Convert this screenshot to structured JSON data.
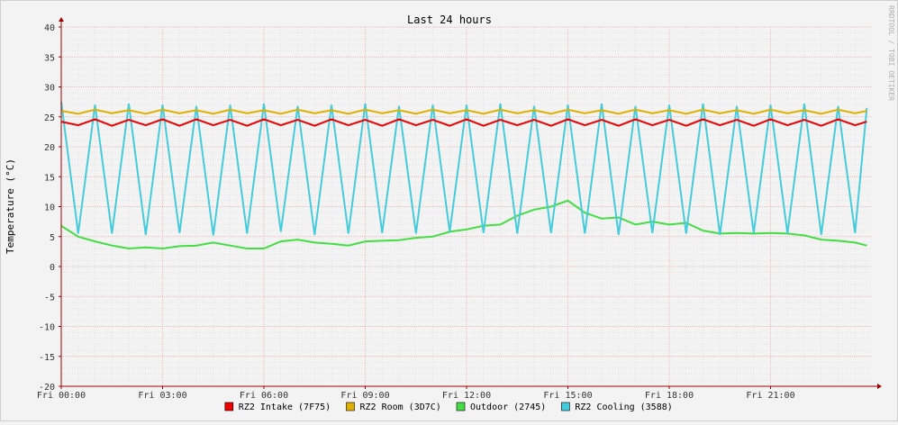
{
  "chart_data": {
    "type": "line",
    "title": "Last 24 hours",
    "ylabel": "Temperature (°C)",
    "watermark": "RRDTOOL / TOBI OETIKER",
    "ylim": [
      -20,
      40
    ],
    "yticks": [
      40,
      35,
      30,
      25,
      20,
      15,
      10,
      5,
      0,
      -5,
      -10,
      -15,
      -20
    ],
    "x_start_hour": 0,
    "x_end_hour": 24,
    "x_ticks": [
      {
        "hour": 0,
        "label": "Fri 00:00"
      },
      {
        "hour": 3,
        "label": "Fri 03:00"
      },
      {
        "hour": 6,
        "label": "Fri 06:00"
      },
      {
        "hour": 9,
        "label": "Fri 09:00"
      },
      {
        "hour": 12,
        "label": "Fri 12:00"
      },
      {
        "hour": 15,
        "label": "Fri 15:00"
      },
      {
        "hour": 18,
        "label": "Fri 18:00"
      },
      {
        "hour": 21,
        "label": "Fri 21:00"
      }
    ],
    "grid": true,
    "legend_position": "bottom",
    "colors": {
      "intake": "#ee0000",
      "room": "#e0b000",
      "outdoor": "#44dd44",
      "cooling": "#44ccdd",
      "grid_major": "#e8a8a8",
      "grid_minor": "#d8d8d8",
      "axis": "#a00000"
    },
    "series": [
      {
        "name": "RZ2 Intake (7F75)",
        "color": "#ee0000",
        "x_hours": [
          0,
          0.5,
          1,
          1.5,
          2,
          2.5,
          3,
          3.5,
          4,
          4.5,
          5,
          5.5,
          6,
          6.5,
          7,
          7.5,
          8,
          8.5,
          9,
          9.5,
          10,
          10.5,
          11,
          11.5,
          12,
          12.5,
          13,
          13.5,
          14,
          14.5,
          15,
          15.5,
          16,
          16.5,
          17,
          17.5,
          18,
          18.5,
          19,
          19.5,
          20,
          20.5,
          21,
          21.5,
          22,
          22.5,
          23,
          23.5,
          23.85
        ],
        "values": [
          24.2,
          23.6,
          24.6,
          23.5,
          24.5,
          23.6,
          24.6,
          23.5,
          24.6,
          23.6,
          24.5,
          23.5,
          24.6,
          23.6,
          24.5,
          23.5,
          24.6,
          23.6,
          24.5,
          23.5,
          24.6,
          23.6,
          24.5,
          23.5,
          24.6,
          23.5,
          24.5,
          23.6,
          24.5,
          23.5,
          24.6,
          23.6,
          24.5,
          23.5,
          24.6,
          23.6,
          24.5,
          23.5,
          24.6,
          23.6,
          24.5,
          23.5,
          24.6,
          23.6,
          24.5,
          23.5,
          24.6,
          23.6,
          24.2
        ]
      },
      {
        "name": "RZ2 Room (3D7C)",
        "color": "#e0b000",
        "x_hours": [
          0,
          0.5,
          1,
          1.5,
          2,
          2.5,
          3,
          3.5,
          4,
          4.5,
          5,
          5.5,
          6,
          6.5,
          7,
          7.5,
          8,
          8.5,
          9,
          9.5,
          10,
          10.5,
          11,
          11.5,
          12,
          12.5,
          13,
          13.5,
          14,
          14.5,
          15,
          15.5,
          16,
          16.5,
          17,
          17.5,
          18,
          18.5,
          19,
          19.5,
          20,
          20.5,
          21,
          21.5,
          22,
          22.5,
          23,
          23.5,
          23.85
        ],
        "values": [
          26.0,
          25.5,
          26.2,
          25.6,
          26.1,
          25.5,
          26.2,
          25.6,
          26.1,
          25.5,
          26.2,
          25.6,
          26.1,
          25.5,
          26.2,
          25.6,
          26.1,
          25.5,
          26.2,
          25.6,
          26.1,
          25.5,
          26.2,
          25.6,
          26.1,
          25.5,
          26.2,
          25.6,
          26.1,
          25.5,
          26.2,
          25.6,
          26.1,
          25.5,
          26.2,
          25.6,
          26.1,
          25.5,
          26.2,
          25.6,
          26.1,
          25.5,
          26.2,
          25.6,
          26.1,
          25.5,
          26.2,
          25.6,
          26.0
        ]
      },
      {
        "name": "Outdoor (2745)",
        "color": "#44dd44",
        "x_hours": [
          0,
          0.5,
          1,
          1.5,
          2,
          2.5,
          3,
          3.5,
          4,
          4.5,
          5,
          5.5,
          6,
          6.5,
          7,
          7.5,
          8,
          8.5,
          9,
          9.5,
          10,
          10.5,
          11,
          11.5,
          12,
          12.5,
          13,
          13.5,
          14,
          14.5,
          15,
          15.5,
          16,
          16.5,
          17,
          17.5,
          18,
          18.5,
          19,
          19.5,
          20,
          20.5,
          21,
          21.5,
          22,
          22.5,
          23,
          23.5,
          23.85
        ],
        "values": [
          6.8,
          5.0,
          4.2,
          3.5,
          3.0,
          3.2,
          3.0,
          3.4,
          3.5,
          4.0,
          3.5,
          3.0,
          3.0,
          4.2,
          4.5,
          4.0,
          3.8,
          3.5,
          4.2,
          4.3,
          4.4,
          4.8,
          5.0,
          5.8,
          6.2,
          6.8,
          7.0,
          8.5,
          9.5,
          10.0,
          11.0,
          9.0,
          8.0,
          8.2,
          7.0,
          7.5,
          7.0,
          7.3,
          6.0,
          5.5,
          5.6,
          5.5,
          5.6,
          5.5,
          5.2,
          4.5,
          4.3,
          4.0,
          3.5
        ]
      },
      {
        "name": "RZ2 Cooling (3588)",
        "color": "#44ccdd",
        "x_hours": [
          0,
          0.5,
          1,
          1.5,
          2,
          2.5,
          3,
          3.5,
          4,
          4.5,
          5,
          5.5,
          6,
          6.5,
          7,
          7.5,
          8,
          8.5,
          9,
          9.5,
          10,
          10.5,
          11,
          11.5,
          12,
          12.5,
          13,
          13.5,
          14,
          14.5,
          15,
          15.5,
          16,
          16.5,
          17,
          17.5,
          18,
          18.5,
          19,
          19.5,
          20,
          20.5,
          21,
          21.5,
          22,
          22.5,
          23,
          23.5,
          23.85
        ],
        "values": [
          27.5,
          5.5,
          27.0,
          5.5,
          27.2,
          5.3,
          27.0,
          5.6,
          26.8,
          5.2,
          27.0,
          5.5,
          27.2,
          5.8,
          26.8,
          5.3,
          27.0,
          5.5,
          27.2,
          5.6,
          26.8,
          5.5,
          27.0,
          5.8,
          27.0,
          5.6,
          27.2,
          5.5,
          26.8,
          5.6,
          27.0,
          5.5,
          27.2,
          5.3,
          26.8,
          5.6,
          27.0,
          5.5,
          27.2,
          5.3,
          26.8,
          5.6,
          27.0,
          5.5,
          27.2,
          5.3,
          26.8,
          5.6,
          26.5
        ]
      }
    ]
  }
}
